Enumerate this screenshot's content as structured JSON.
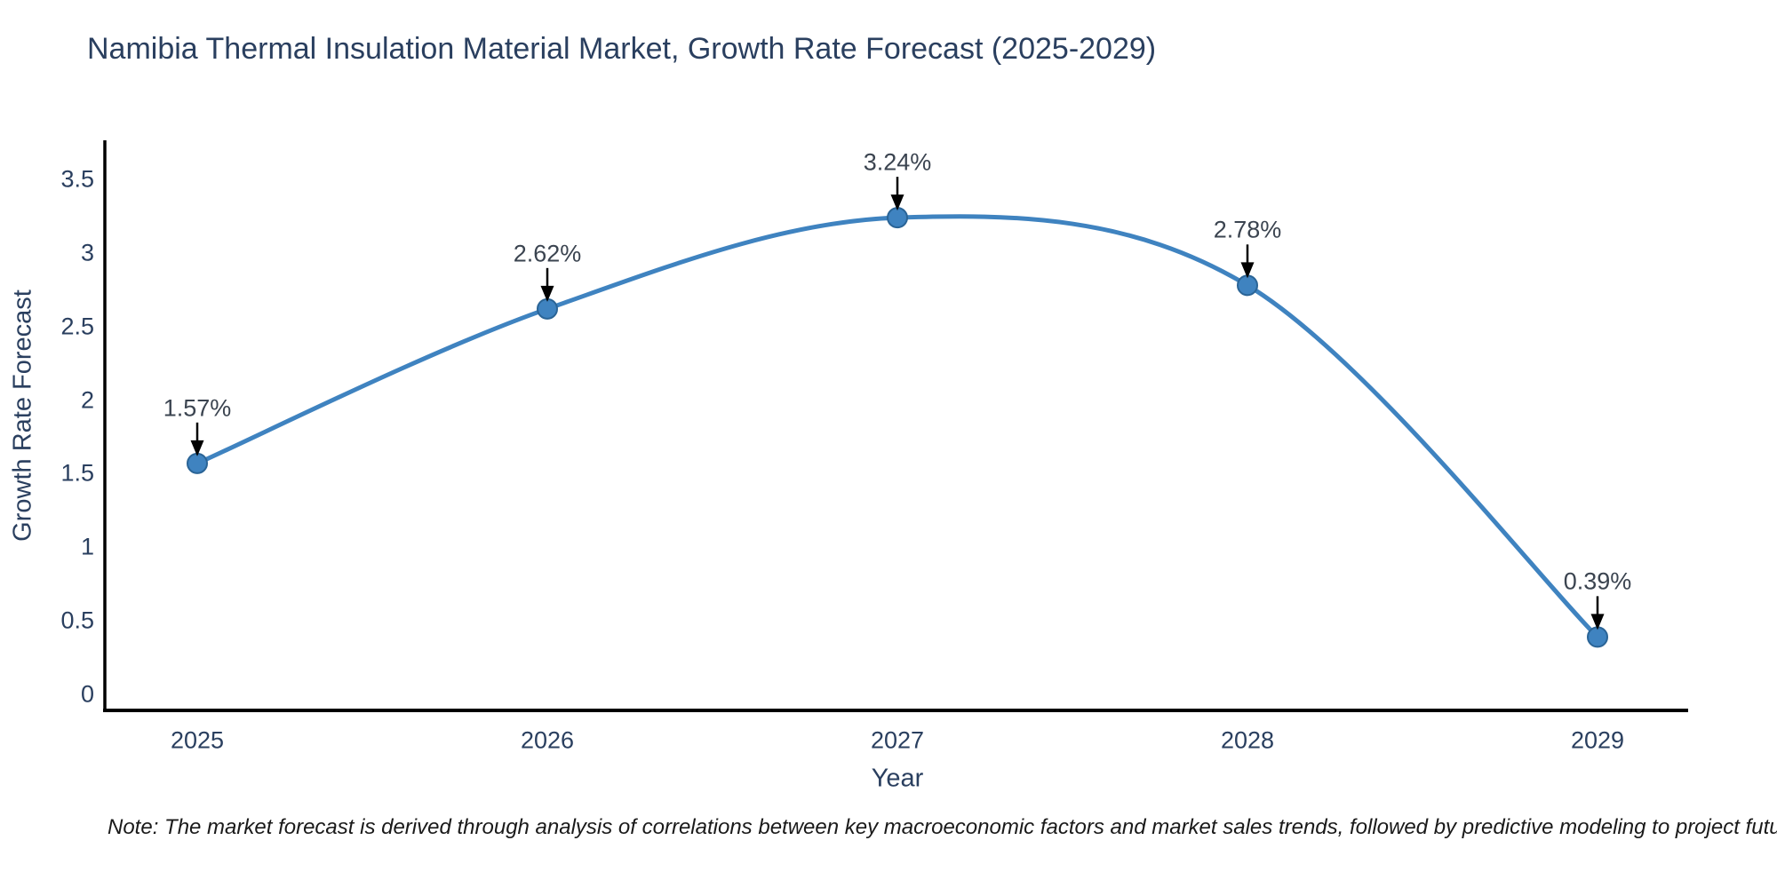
{
  "chart_data": {
    "type": "line",
    "title": "Namibia Thermal Insulation Material Market, Growth Rate Forecast (2025-2029)",
    "xlabel": "Year",
    "ylabel": "Growth Rate Forecast",
    "categories": [
      "2025",
      "2026",
      "2027",
      "2028",
      "2029"
    ],
    "series": [
      {
        "name": "Growth Rate Forecast",
        "values": [
          1.57,
          2.62,
          3.24,
          2.78,
          0.39
        ]
      }
    ],
    "point_labels": [
      "1.57%",
      "2.62%",
      "3.24%",
      "2.78%",
      "0.39%"
    ],
    "y_ticks": [
      0,
      0.5,
      1,
      1.5,
      2,
      2.5,
      3,
      3.5
    ],
    "ylim": [
      -0.11,
      3.76
    ],
    "grid": false,
    "legend_position": "none",
    "line_color": "#3f83c0",
    "marker_color": "#3f83c0",
    "marker_edge_color": "#2a6496",
    "axis_color": "#000000",
    "annotation_arrow_color": "#000000",
    "text_color": "#2a3f5f",
    "note": "Note: The market forecast is derived through analysis of correlations between key macroeconomic factors and market sales trends, followed by predictive modeling to project future sales."
  }
}
